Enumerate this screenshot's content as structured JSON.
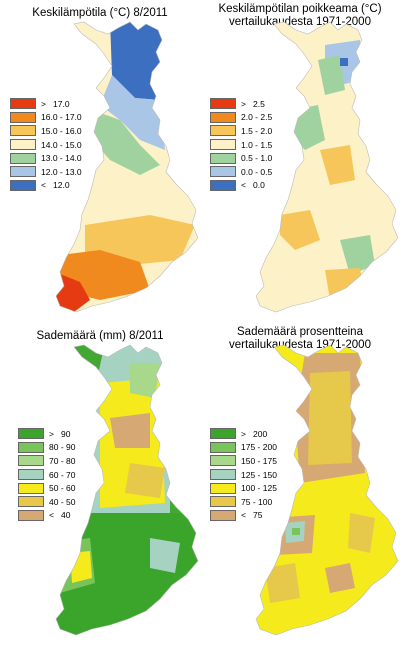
{
  "maps": [
    {
      "id": "temp",
      "title": [
        "Keskilämpötila (°C) 8/2011"
      ],
      "base_color": "#fdf1c8",
      "legend": [
        {
          "label": ">   17.0",
          "color": "#e53a12"
        },
        {
          "label": "16.0 - 17.0",
          "color": "#f08a1e"
        },
        {
          "label": "15.0 - 16.0",
          "color": "#f6c65a"
        },
        {
          "label": "14.0 - 15.0",
          "color": "#fdf1c8"
        },
        {
          "label": "13.0 - 14.0",
          "color": "#9fd29f"
        },
        {
          "label": "12.0 - 13.0",
          "color": "#a9c6e6"
        },
        {
          "label": "<   12.0",
          "color": "#3d6fc0"
        }
      ]
    },
    {
      "id": "anomaly",
      "title": [
        "Keskilämpötilan poikkeama (°C)",
        "vertailukaudesta 1971-2000"
      ],
      "base_color": "#fdf1c8",
      "legend": [
        {
          "label": ">   2.5",
          "color": "#e53a12"
        },
        {
          "label": "2.0 - 2.5",
          "color": "#f08a1e"
        },
        {
          "label": "1.5 - 2.0",
          "color": "#f6c65a"
        },
        {
          "label": "1.0 - 1.5",
          "color": "#fdf1c8"
        },
        {
          "label": "0.5 - 1.0",
          "color": "#9fd29f"
        },
        {
          "label": "0.0 - 0.5",
          "color": "#a9c6e6"
        },
        {
          "label": "<   0.0",
          "color": "#3d6fc0"
        }
      ]
    },
    {
      "id": "precip",
      "title": [
        "Sademäärä (mm) 8/2011"
      ],
      "base_color": "#42a832",
      "legend": [
        {
          "label": ">   90",
          "color": "#3aa52a"
        },
        {
          "label": "80 - 90",
          "color": "#78c45a"
        },
        {
          "label": "70 - 80",
          "color": "#a8d88a"
        },
        {
          "label": "60 - 70",
          "color": "#a6d2c2"
        },
        {
          "label": "50 - 60",
          "color": "#f4ea1c"
        },
        {
          "label": "40 - 50",
          "color": "#e6c84a"
        },
        {
          "label": "<   40",
          "color": "#d6a874"
        }
      ]
    },
    {
      "id": "precip_pct",
      "title": [
        "Sademäärä prosentteina",
        "vertailukaudesta 1971-2000"
      ],
      "base_color": "#f4ea1c",
      "legend": [
        {
          "label": ">   200",
          "color": "#3aa52a"
        },
        {
          "label": "175 - 200",
          "color": "#78c45a"
        },
        {
          "label": "150 - 175",
          "color": "#a8d88a"
        },
        {
          "label": "125 - 150",
          "color": "#a6d2c2"
        },
        {
          "label": "100 - 125",
          "color": "#f4ea1c"
        },
        {
          "label": "75 - 100",
          "color": "#e6c84a"
        },
        {
          "label": "<   75",
          "color": "#d6a874"
        }
      ]
    }
  ]
}
